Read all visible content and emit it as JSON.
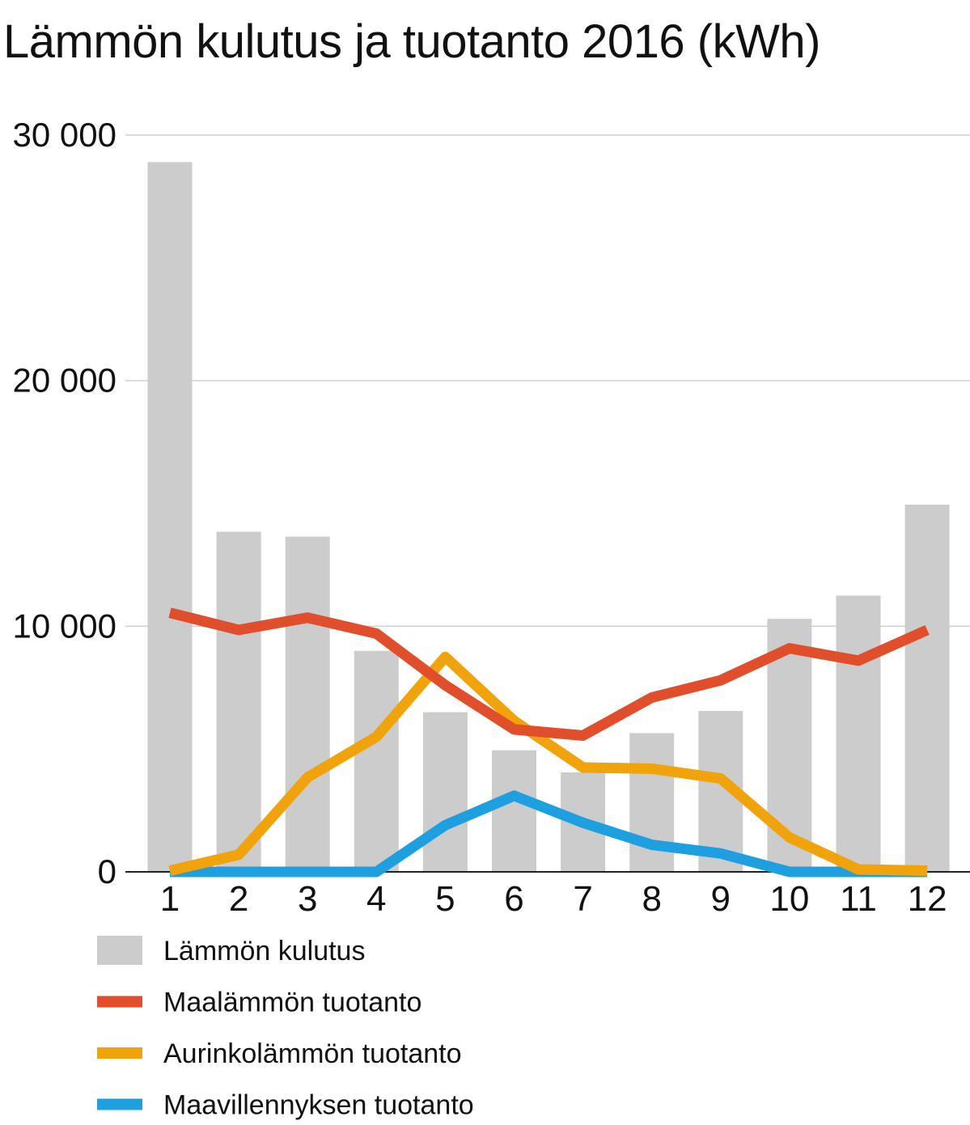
{
  "chart_data": {
    "type": "bar",
    "title": "Lämmön kulutus ja tuotanto 2016 (kWh)",
    "xlabel": "",
    "ylabel": "",
    "categories": [
      "1",
      "2",
      "3",
      "4",
      "5",
      "6",
      "7",
      "8",
      "9",
      "10",
      "11",
      "12"
    ],
    "ylim": [
      0,
      30000
    ],
    "yticks": [
      0,
      10000,
      20000,
      30000
    ],
    "ytick_labels": [
      "0",
      "10 000",
      "20 000",
      "30 000"
    ],
    "grid": true,
    "legend_position": "bottom",
    "series": [
      {
        "name": "Lämmön kulutus",
        "type": "bar",
        "color": "#cccccc",
        "values": [
          28900,
          13850,
          13650,
          9000,
          6500,
          4950,
          4050,
          5650,
          6550,
          10300,
          11250,
          14950
        ]
      },
      {
        "name": "Maalämmön tuotanto",
        "type": "line",
        "color": "#e04e2b",
        "values": [
          10550,
          9850,
          10350,
          9700,
          7600,
          5800,
          5550,
          7100,
          7800,
          9100,
          8600,
          9850
        ]
      },
      {
        "name": "Aurinkolämmön tuotanto",
        "type": "line",
        "color": "#f0a30a",
        "values": [
          50,
          700,
          3850,
          5500,
          8750,
          6150,
          4250,
          4200,
          3800,
          1400,
          100,
          50
        ]
      },
      {
        "name": "Maavillennyksen tuotanto",
        "type": "line",
        "color": "#1ea0e0",
        "values": [
          0,
          0,
          0,
          0,
          1900,
          3100,
          2000,
          1100,
          750,
          0,
          0,
          0
        ]
      }
    ]
  }
}
